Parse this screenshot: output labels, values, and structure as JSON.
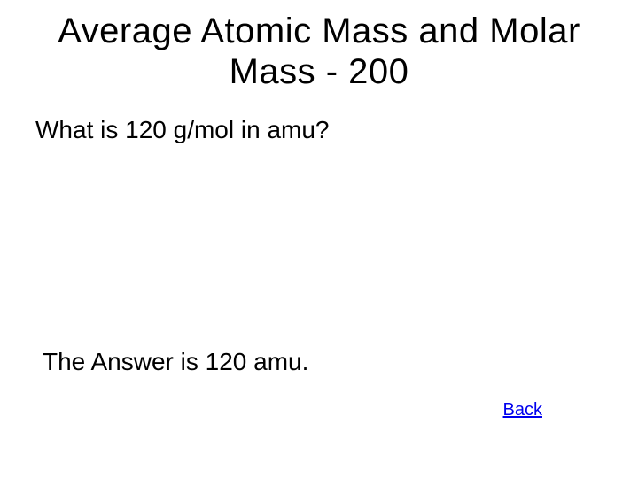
{
  "slide": {
    "title": "Average Atomic Mass and Molar Mass - 200",
    "question": "What is 120 g/mol in amu?",
    "answer": "The Answer is 120 amu.",
    "back_label": "Back"
  },
  "style": {
    "background_color": "#ffffff",
    "text_color": "#000000",
    "link_color": "#0000ee",
    "title_fontsize": 40,
    "body_fontsize": 28,
    "link_fontsize": 20,
    "font_family": "Arial"
  }
}
